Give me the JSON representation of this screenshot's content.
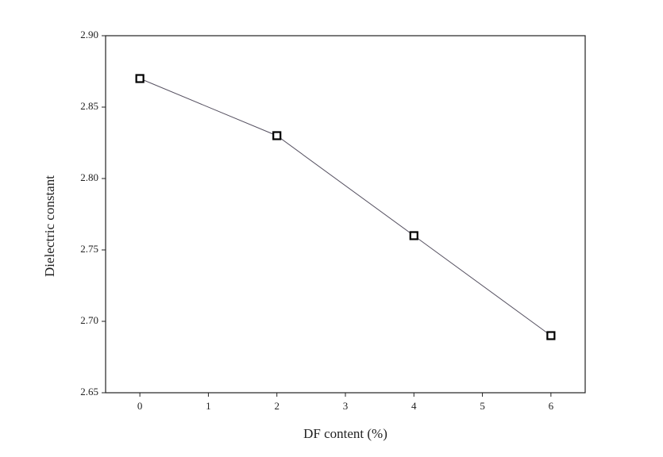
{
  "chart_data": {
    "type": "line",
    "x_label": "DF content (%)",
    "y_label": "Dielectric constant",
    "x": [
      0,
      2,
      4,
      6
    ],
    "series": [
      {
        "color": "#555060",
        "values": [
          2.87,
          2.83,
          2.76,
          2.69
        ]
      }
    ],
    "xlim": [
      -0.5,
      6.5
    ],
    "xticks": [
      0,
      1,
      2,
      3,
      4,
      5,
      6
    ],
    "ylim": [
      2.65,
      2.9
    ],
    "yticks": [
      2.65,
      {
        "value": 2.7,
        "label": "2.70"
      },
      2.75,
      {
        "value": 2.8,
        "label": "2.80"
      },
      2.85,
      {
        "value": 2.9,
        "label": "2.90"
      }
    ],
    "grid": false
  }
}
